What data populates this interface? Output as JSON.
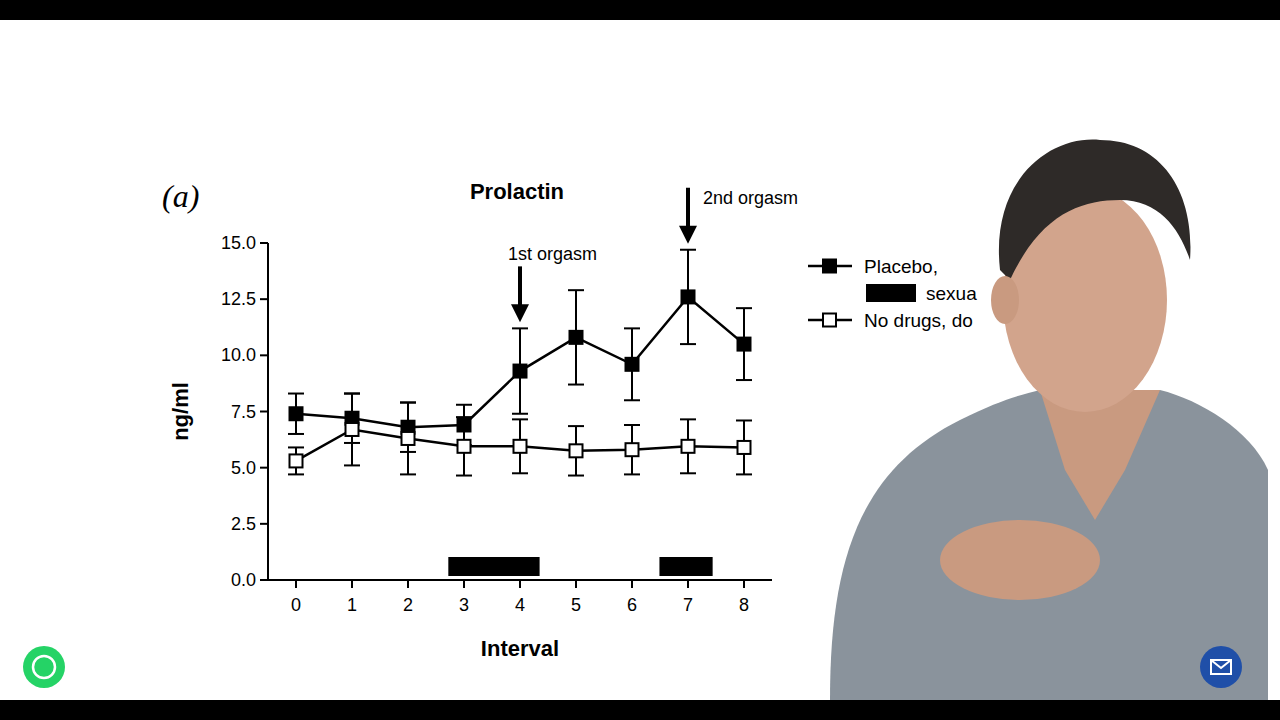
{
  "chart_data": {
    "type": "line",
    "panel_label": "(a)",
    "title": "Prolactin",
    "x_label": "Interval",
    "y_label": "ng/ml",
    "x": [
      0,
      1,
      2,
      3,
      4,
      5,
      6,
      7,
      8
    ],
    "xlim": [
      -0.5,
      8.5
    ],
    "xticks": [
      0,
      1,
      2,
      3,
      4,
      5,
      6,
      7,
      8
    ],
    "ylim": [
      0,
      15
    ],
    "yticks": [
      {
        "value": 0,
        "label": "0.0"
      },
      {
        "value": 2.5,
        "label": "2.5"
      },
      {
        "value": 5,
        "label": "5.0"
      },
      {
        "value": 7.5,
        "label": "7.5"
      },
      {
        "value": 10,
        "label": "10.0"
      },
      {
        "value": 12.5,
        "label": "12.5"
      },
      {
        "value": 15,
        "label": "15.0"
      }
    ],
    "grid": false,
    "legend": "right",
    "series": [
      {
        "name": "Placebo,",
        "color": "#000000",
        "marker": "square",
        "values": [
          7.4,
          7.2,
          6.8,
          6.9,
          9.3,
          10.8,
          9.6,
          12.6,
          10.5
        ],
        "errors": [
          0.9,
          1.1,
          1.1,
          0.9,
          1.9,
          2.1,
          1.6,
          2.1,
          1.6
        ]
      },
      {
        "name": "No drugs, do",
        "color": "#000000",
        "marker": "open_square",
        "values": [
          5.3,
          6.7,
          6.3,
          5.95,
          5.95,
          5.75,
          5.8,
          5.95,
          5.9
        ],
        "errors": [
          0.6,
          1.6,
          1.6,
          1.3,
          1.2,
          1.1,
          1.1,
          1.2,
          1.2
        ]
      }
    ],
    "period_label": "sexua",
    "periods": [
      {
        "start": 2.72,
        "end": 4.35
      },
      {
        "start": 6.49,
        "end": 7.44
      }
    ],
    "annotations": [
      {
        "text": "1st orgasm",
        "x": 4
      },
      {
        "text": "2nd orgasm",
        "x": 7
      }
    ]
  }
}
